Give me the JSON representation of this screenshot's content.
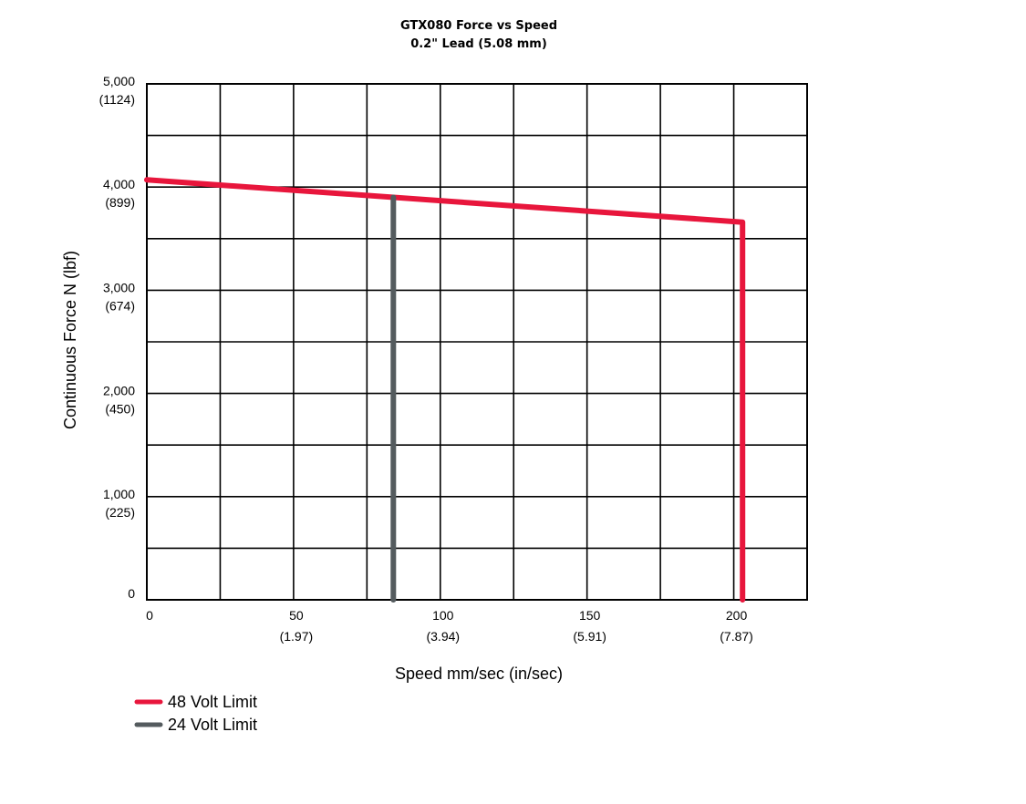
{
  "chart_data": {
    "type": "line",
    "title": "GTX080 Force vs Speed",
    "subtitle": "0.2\" Lead (5.08 mm)",
    "xlabel": "Speed mm/sec (in/sec)",
    "ylabel": "Continuous Force N (lbf)",
    "xlim": [
      0,
      225
    ],
    "ylim": [
      0,
      5000
    ],
    "grid": true,
    "x_ticks": [
      {
        "value": 0,
        "label": "0",
        "sublabel": ""
      },
      {
        "value": 50,
        "label": "50",
        "sublabel": "(1.97)"
      },
      {
        "value": 100,
        "label": "100",
        "sublabel": "(3.94)"
      },
      {
        "value": 150,
        "label": "150",
        "sublabel": "(5.91)"
      },
      {
        "value": 200,
        "label": "200",
        "sublabel": "(7.87)"
      }
    ],
    "y_ticks": [
      {
        "value": 0,
        "label": "0",
        "sublabel": ""
      },
      {
        "value": 1000,
        "label": "1,000",
        "sublabel": "(225)"
      },
      {
        "value": 2000,
        "label": "2,000",
        "sublabel": "(450)"
      },
      {
        "value": 3000,
        "label": "3,000",
        "sublabel": "(674)"
      },
      {
        "value": 4000,
        "label": "4,000",
        "sublabel": "(899)"
      },
      {
        "value": 5000,
        "label": "5,000",
        "sublabel": "(1124)"
      }
    ],
    "series": [
      {
        "name": "48 Volt Limit",
        "color": "#e8163c",
        "points": [
          [
            0,
            4070
          ],
          [
            203,
            3660
          ],
          [
            203,
            0
          ]
        ]
      },
      {
        "name": "24 Volt Limit",
        "color": "#545b5e",
        "points": [
          [
            84,
            3900
          ],
          [
            84,
            0
          ]
        ]
      }
    ],
    "legend_position": "bottom-left"
  }
}
